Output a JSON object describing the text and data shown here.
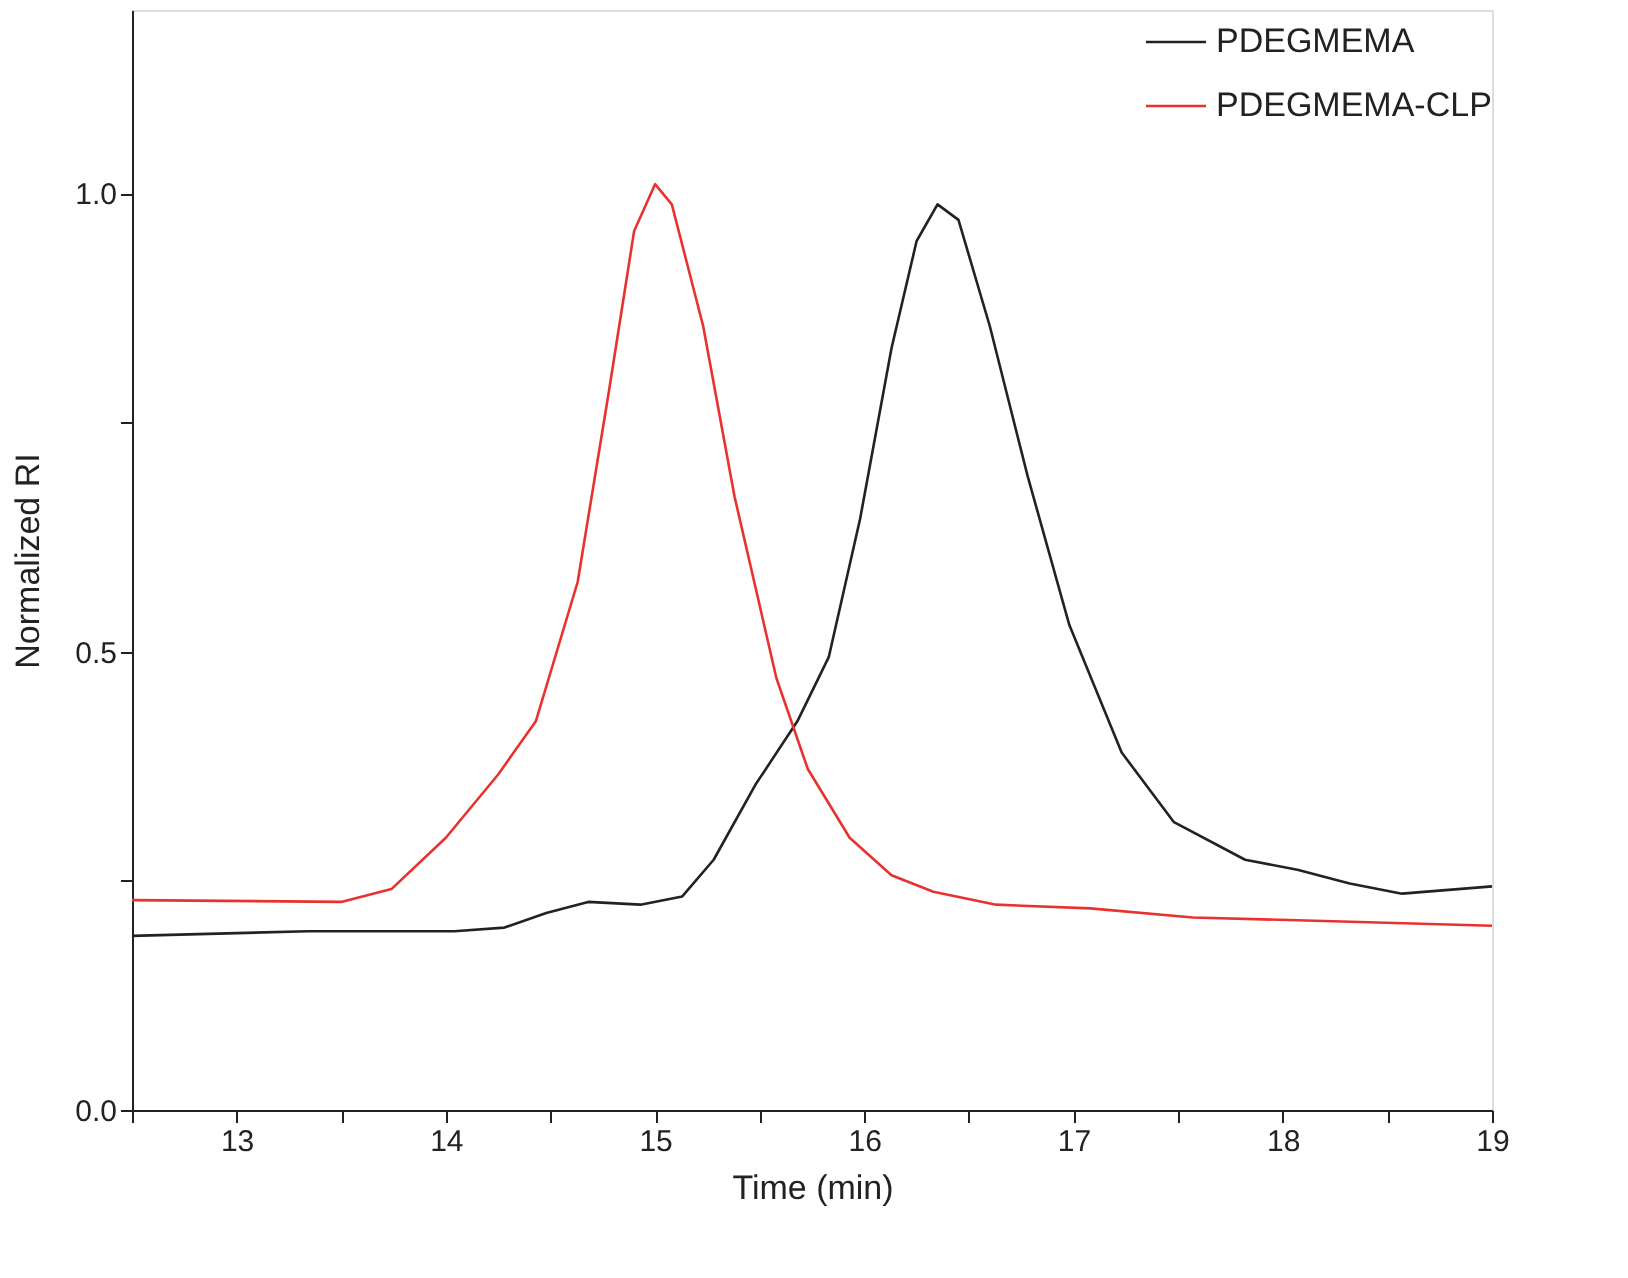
{
  "chart_data": {
    "type": "line",
    "xlabel": "Time (min)",
    "ylabel": "Normalized RI",
    "xlim": [
      12.5,
      19
    ],
    "ylim": [
      0,
      1.2
    ],
    "xticks": [
      {
        "value": 12.5,
        "label": null
      },
      13,
      {
        "value": 13.5,
        "label": null
      },
      14,
      {
        "value": 14.5,
        "label": null
      },
      15,
      {
        "value": 15.5,
        "label": null
      },
      16,
      {
        "value": 16.5,
        "label": null
      },
      17,
      {
        "value": 17.5,
        "label": null
      },
      18,
      {
        "value": 18.5,
        "label": null
      },
      19
    ],
    "yticks": [
      {
        "value": 0,
        "label": "0.0"
      },
      {
        "value": 0.25,
        "label": null
      },
      0.5,
      {
        "value": 0.75,
        "label": null
      },
      {
        "value": 1,
        "label": "1.0"
      }
    ],
    "grid": false,
    "legend": "top right",
    "line_style": "solid",
    "marker": "none",
    "series": [
      {
        "name": "PDEGMEMA",
        "color": "#222222",
        "x": [
          12.5,
          13.34,
          14.04,
          14.28,
          14.48,
          14.68,
          14.93,
          15.13,
          15.28,
          15.48,
          15.68,
          15.83,
          15.98,
          16.13,
          16.25,
          16.35,
          16.45,
          16.6,
          16.78,
          16.98,
          17.23,
          17.48,
          17.82,
          18.07,
          18.32,
          18.57,
          19.0
        ],
        "values": [
          0.19,
          0.195,
          0.195,
          0.199,
          0.215,
          0.227,
          0.224,
          0.233,
          0.273,
          0.355,
          0.424,
          0.494,
          0.645,
          0.831,
          0.948,
          0.988,
          0.971,
          0.855,
          0.692,
          0.529,
          0.39,
          0.314,
          0.273,
          0.262,
          0.247,
          0.236,
          0.244
        ]
      },
      {
        "name": "PDEGMEMA-CLP",
        "color": "#e8322e",
        "x": [
          12.5,
          13.5,
          13.74,
          14.0,
          14.25,
          14.43,
          14.63,
          14.78,
          14.9,
          15.0,
          15.08,
          15.23,
          15.38,
          15.58,
          15.73,
          15.93,
          16.13,
          16.33,
          16.63,
          17.08,
          17.57,
          18.07,
          19.0
        ],
        "values": [
          0.229,
          0.227,
          0.241,
          0.297,
          0.366,
          0.424,
          0.576,
          0.785,
          0.959,
          1.01,
          0.988,
          0.855,
          0.669,
          0.471,
          0.372,
          0.297,
          0.256,
          0.238,
          0.224,
          0.22,
          0.21,
          0.207,
          0.201
        ]
      }
    ]
  }
}
